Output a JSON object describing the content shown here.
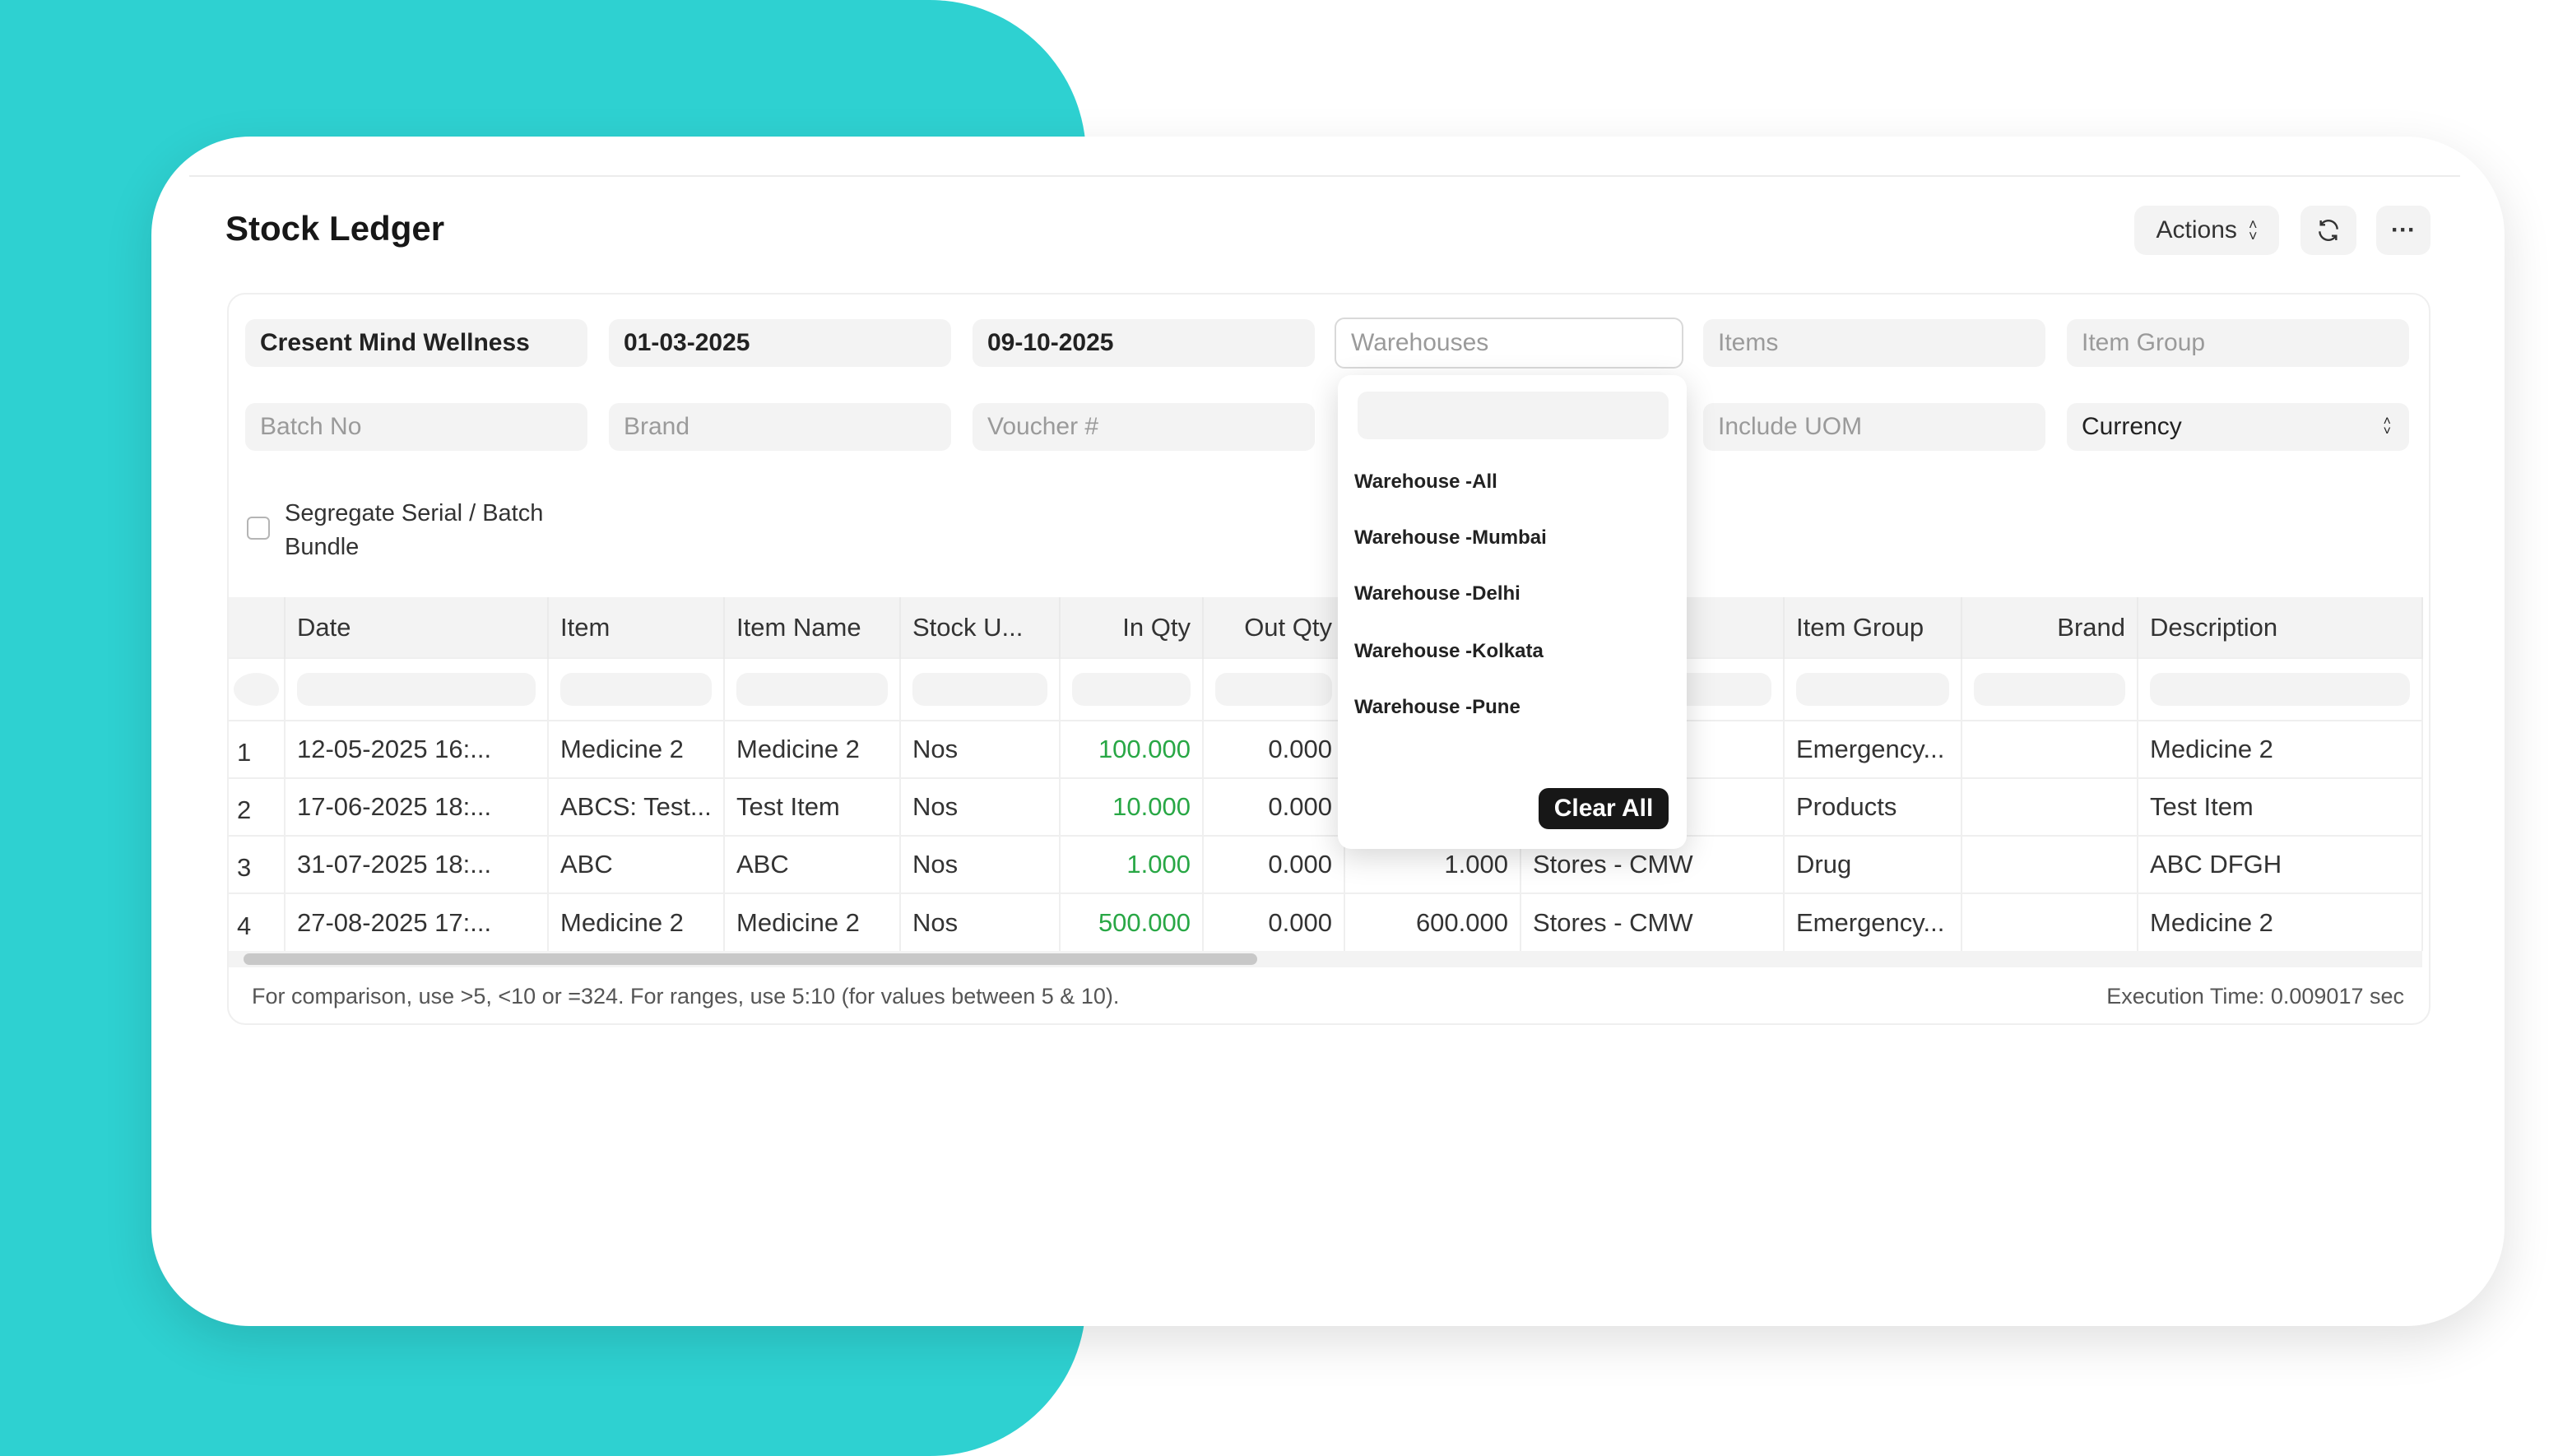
{
  "page": {
    "title": "Stock Ledger",
    "actions_label": "Actions",
    "refresh_icon": "refresh-icon",
    "more_icon": "ellipsis-icon",
    "accent": "#2ed1d1"
  },
  "filters": {
    "company": "Cresent Mind Wellness",
    "from_date": "01-03-2025",
    "to_date": "09-10-2025",
    "warehouses_placeholder": "Warehouses",
    "items_placeholder": "Items",
    "item_group_placeholder": "Item Group",
    "batch_placeholder": "Batch No",
    "brand_placeholder": "Brand",
    "voucher_placeholder": "Voucher #",
    "uom_placeholder": "Include UOM",
    "currency_label": "Currency",
    "segregate_label": "Segregate Serial / Batch Bundle",
    "segregate_checked": false
  },
  "dropdown": {
    "options": [
      "Warehouse -All",
      "Warehouse -Mumbai",
      "Warehouse -Delhi",
      "Warehouse -Kolkata",
      "Warehouse -Pune"
    ],
    "clear_label": "Clear All"
  },
  "table": {
    "columns": [
      "Date",
      "Item",
      "Item Name",
      "Stock U...",
      "In Qty",
      "Out Qty",
      "",
      "",
      "Item Group",
      "Brand",
      "Description"
    ],
    "rows": [
      {
        "idx": "1",
        "date": "12-05-2025 16:...",
        "item": "Medicine 2",
        "item_name": "Medicine 2",
        "uom": "Nos",
        "in_qty": "100.000",
        "out_qty": "0.000",
        "balance": "",
        "warehouse": "",
        "item_group": "Emergency...",
        "brand": "",
        "description": "Medicine 2"
      },
      {
        "idx": "2",
        "date": "17-06-2025 18:...",
        "item": "ABCS: Test...",
        "item_name": "Test Item",
        "uom": "Nos",
        "in_qty": "10.000",
        "out_qty": "0.000",
        "balance": "",
        "warehouse": "",
        "item_group": "Products",
        "brand": "",
        "description": "Test Item"
      },
      {
        "idx": "3",
        "date": "31-07-2025 18:...",
        "item": "ABC",
        "item_name": "ABC",
        "uom": "Nos",
        "in_qty": "1.000",
        "out_qty": "0.000",
        "balance": "1.000",
        "warehouse": "Stores - CMW",
        "item_group": "Drug",
        "brand": "",
        "description": "ABC DFGH"
      },
      {
        "idx": "4",
        "date": "27-08-2025 17:...",
        "item": "Medicine 2",
        "item_name": "Medicine 2",
        "uom": "Nos",
        "in_qty": "500.000",
        "out_qty": "0.000",
        "balance": "600.000",
        "warehouse": "Stores - CMW",
        "item_group": "Emergency...",
        "brand": "",
        "description": "Medicine 2"
      }
    ]
  },
  "footer": {
    "hint": "For comparison, use >5, <10 or =324. For ranges, use 5:10 (for values between 5 & 10).",
    "execution_time": "Execution Time: 0.009017 sec"
  }
}
